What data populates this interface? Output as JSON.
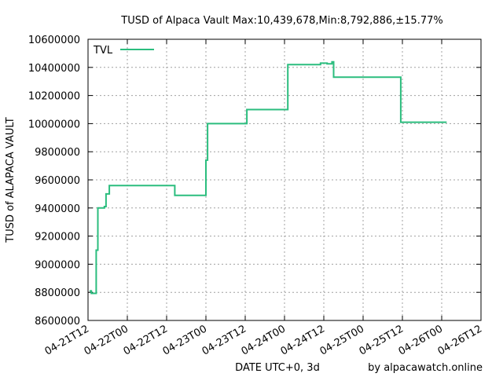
{
  "chart_data": {
    "type": "line",
    "title": "TUSD of Alpaca Vault Max:10,439,678,Min:8,792,886,±15.77%",
    "xlabel": "DATE UTC+0, 3d",
    "ylabel": "TUSD of ALAPACA VAULT",
    "credit": "by alpacawatch.online",
    "ylim": [
      8600000,
      10600000
    ],
    "xlim": [
      "2021-04-21T12:00",
      "2021-04-26T12:00"
    ],
    "y_ticks": [
      8600000,
      8800000,
      9000000,
      9200000,
      9400000,
      9600000,
      9800000,
      10000000,
      10200000,
      10400000,
      10600000
    ],
    "y_tick_labels": [
      "8600000",
      "8800000",
      "9000000",
      "9200000",
      "9400000",
      "9600000",
      "9800000",
      "10000000",
      "10200000",
      "10400000",
      "10600000"
    ],
    "x_ticks": [
      "2021-04-21T12:00",
      "2021-04-22T00:00",
      "2021-04-22T12:00",
      "2021-04-23T00:00",
      "2021-04-23T12:00",
      "2021-04-24T00:00",
      "2021-04-24T12:00",
      "2021-04-25T00:00",
      "2021-04-25T12:00",
      "2021-04-26T00:00",
      "2021-04-26T12:00"
    ],
    "x_tick_labels": [
      "04-21T12",
      "04-22T00",
      "04-22T12",
      "04-23T00",
      "04-23T12",
      "04-24T00",
      "04-24T12",
      "04-25T00",
      "04-25T12",
      "04-26T00",
      "04-26T12"
    ],
    "grid": true,
    "legend_position": "top-left",
    "series": [
      {
        "name": "TVL",
        "color": "#2bbd7e",
        "x": [
          "2021-04-21T12:30",
          "2021-04-21T13:00",
          "2021-04-21T14:00",
          "2021-04-21T14:30",
          "2021-04-21T15:00",
          "2021-04-21T17:00",
          "2021-04-21T17:30",
          "2021-04-21T18:30",
          "2021-04-22T14:00",
          "2021-04-22T14:30",
          "2021-04-22T23:30",
          "2021-04-23T00:00",
          "2021-04-23T00:30",
          "2021-04-23T12:00",
          "2021-04-23T12:30",
          "2021-04-24T00:30",
          "2021-04-24T01:00",
          "2021-04-24T09:00",
          "2021-04-24T11:00",
          "2021-04-24T13:00",
          "2021-04-24T14:30",
          "2021-04-24T15:00",
          "2021-04-24T15:30",
          "2021-04-25T11:00",
          "2021-04-25T11:30",
          "2021-04-26T01:30"
        ],
        "y": [
          8810000,
          8792886,
          8792886,
          9100000,
          9400000,
          9410000,
          9500000,
          9560000,
          9560000,
          9490000,
          9490000,
          9740000,
          10000000,
          10000000,
          10100000,
          10100000,
          10420000,
          10420000,
          10430000,
          10425000,
          10439678,
          10330000,
          10330000,
          10330000,
          10010000,
          10010000
        ]
      }
    ]
  }
}
